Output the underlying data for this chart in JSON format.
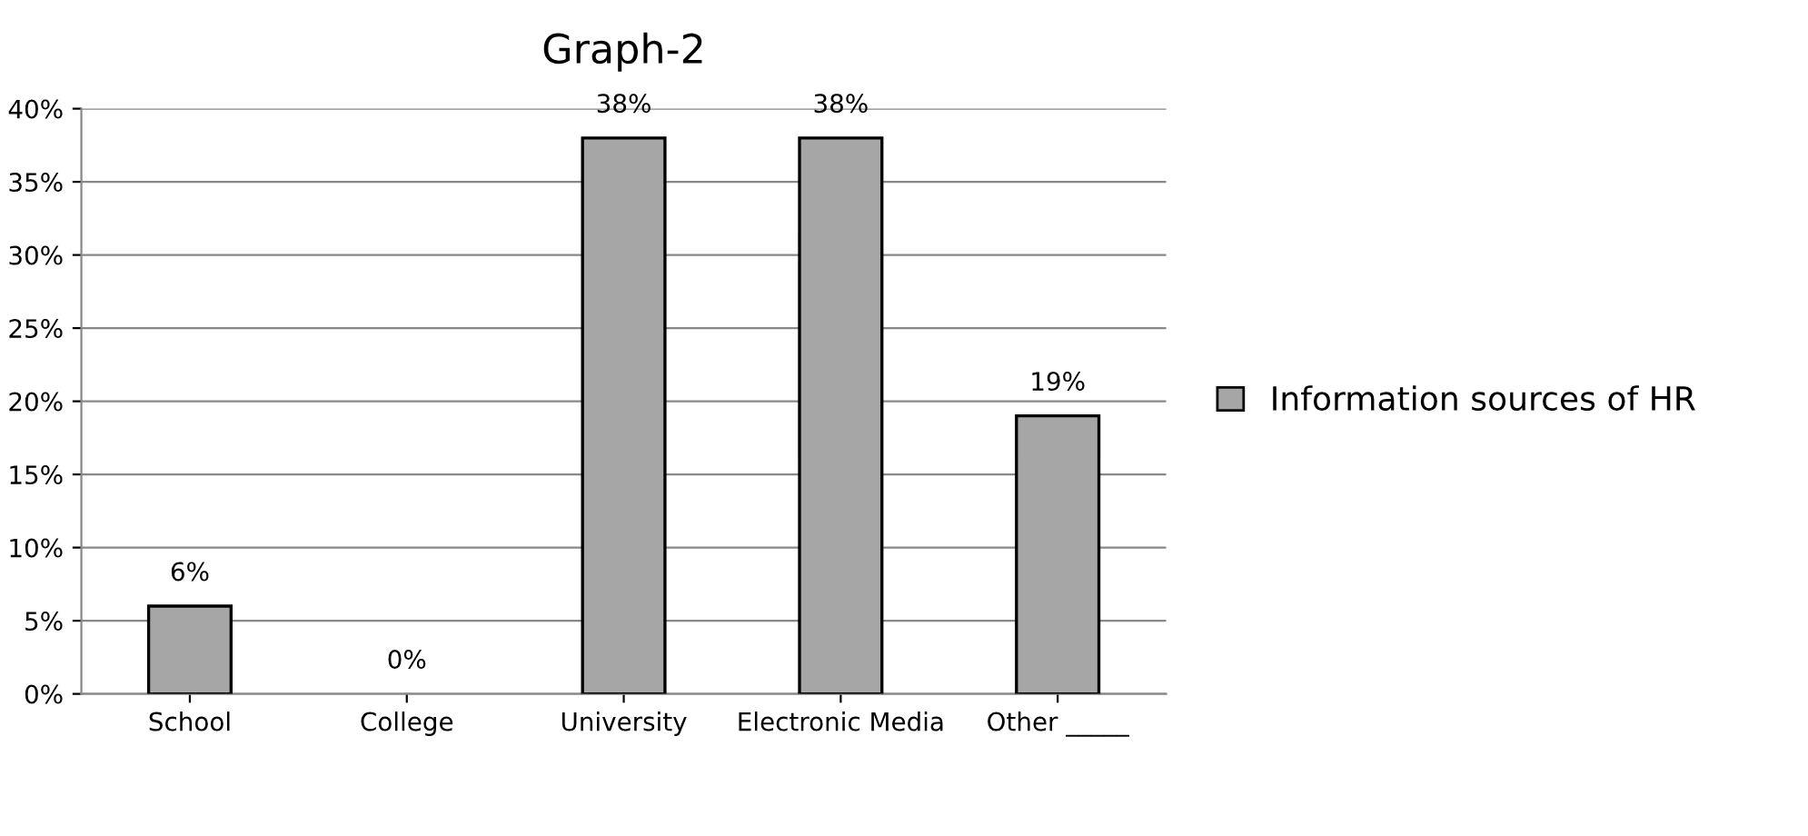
{
  "chart_data": {
    "type": "bar",
    "title": "Graph-2",
    "categories": [
      "School",
      "College",
      "University",
      "Electronic Media",
      "Other _____"
    ],
    "series": [
      {
        "name": "Information sources of HR",
        "color": "#a6a6a6",
        "values": [
          6,
          0,
          38,
          38,
          19
        ],
        "value_labels": [
          "6%",
          "0%",
          "38%",
          "38%",
          "19%"
        ]
      }
    ],
    "ylim": [
      0,
      40
    ],
    "yticks": [
      {
        "value": 0,
        "label": "0%"
      },
      {
        "value": 5,
        "label": "5%"
      },
      {
        "value": 10,
        "label": "10%"
      },
      {
        "value": 15,
        "label": "15%"
      },
      {
        "value": 20,
        "label": "20%"
      },
      {
        "value": 25,
        "label": "25%"
      },
      {
        "value": 30,
        "label": "30%"
      },
      {
        "value": 35,
        "label": "35%"
      },
      {
        "value": 40,
        "label": "40%"
      }
    ],
    "grid": "y",
    "legend": "right"
  }
}
